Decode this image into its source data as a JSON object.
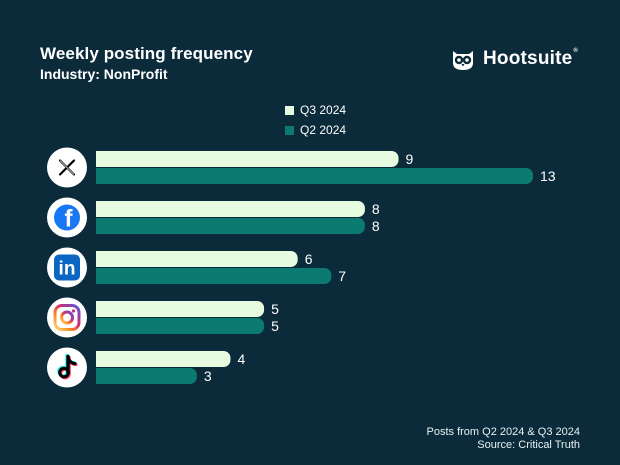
{
  "header": {
    "title": "Weekly posting frequency",
    "subtitle": "Industry: NonProfit"
  },
  "brand": {
    "name": "Hootsuite",
    "reg": "®",
    "icon": "owl-logo-icon"
  },
  "footer": {
    "line1": "Posts from Q2 2024 & Q3 2024",
    "line2": "Source: Critical Truth"
  },
  "colors": {
    "background": "#0b2b3a",
    "q3": "#e6fbdf",
    "q2": "#0b7a70"
  },
  "chart_data": {
    "type": "bar",
    "orientation": "horizontal",
    "categories": [
      "X",
      "Facebook",
      "LinkedIn",
      "Instagram",
      "TikTok"
    ],
    "category_icons": [
      "x-logo-icon",
      "facebook-logo-icon",
      "linkedin-logo-icon",
      "instagram-logo-icon",
      "tiktok-logo-icon"
    ],
    "series": [
      {
        "name": "Q3 2024",
        "color": "#e6fbdf",
        "values": [
          9,
          8,
          6,
          5,
          4
        ]
      },
      {
        "name": "Q2 2024",
        "color": "#0b7a70",
        "values": [
          13,
          8,
          7,
          5,
          3
        ]
      }
    ],
    "title": "Weekly posting frequency",
    "subtitle": "Industry: NonProfit",
    "xlim": [
      0,
      13
    ],
    "grid": false,
    "legend": "top-center",
    "data_labels": true
  }
}
